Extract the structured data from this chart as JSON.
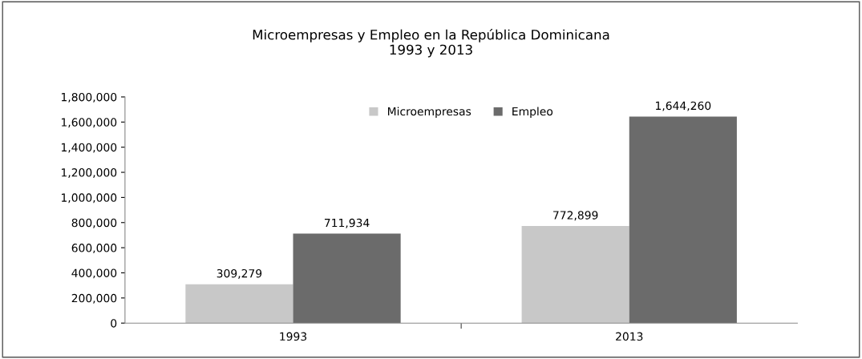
{
  "chart_data": {
    "type": "bar",
    "title": "Microempresas y Empleo en la República Dominicana\n1993 y 2013",
    "categories": [
      "1993",
      "2013"
    ],
    "series": [
      {
        "name": "Microempresas",
        "color": "#c8c8c8",
        "values": [
          309279,
          772899
        ],
        "value_labels": [
          "309,279",
          "772,899"
        ]
      },
      {
        "name": "Empleo",
        "color": "#6b6b6b",
        "values": [
          711934,
          1644260
        ],
        "value_labels": [
          "711,934",
          "1,644,260"
        ]
      }
    ],
    "ylim": [
      0,
      1800000
    ],
    "yticks": [
      0,
      {
        "value": 200000,
        "label": "200,000"
      },
      {
        "value": 400000,
        "label": "400,000"
      },
      {
        "value": 600000,
        "label": "600,000"
      },
      {
        "value": 800000,
        "label": "800,000"
      },
      {
        "value": 1000000,
        "label": "1,000,000"
      },
      {
        "value": 1200000,
        "label": "1,200,000"
      },
      {
        "value": 1400000,
        "label": "1,400,000"
      },
      {
        "value": 1600000,
        "label": "1,600,000"
      },
      {
        "value": 1800000,
        "label": "1,800,000"
      }
    ],
    "grid": false,
    "legend": "top"
  }
}
